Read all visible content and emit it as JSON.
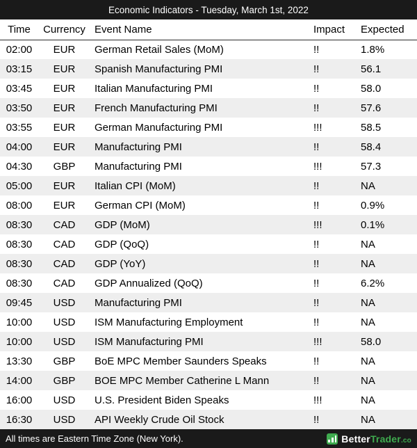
{
  "title": "Economic Indicators - Tuesday, March 1st, 2022",
  "table": {
    "headers": [
      "Time",
      "Currency",
      "Event Name",
      "Impact",
      "Expected"
    ],
    "rows": [
      {
        "time": "02:00",
        "currency": "EUR",
        "event": "German Retail Sales (MoM)",
        "impact": "!!",
        "expected": "1.8%"
      },
      {
        "time": "03:15",
        "currency": "EUR",
        "event": "Spanish Manufacturing PMI",
        "impact": "!!",
        "expected": "56.1"
      },
      {
        "time": "03:45",
        "currency": "EUR",
        "event": "Italian Manufacturing PMI",
        "impact": "!!",
        "expected": "58.0"
      },
      {
        "time": "03:50",
        "currency": "EUR",
        "event": "French Manufacturing PMI",
        "impact": "!!",
        "expected": "57.6"
      },
      {
        "time": "03:55",
        "currency": "EUR",
        "event": "German Manufacturing PMI",
        "impact": "!!!",
        "expected": "58.5"
      },
      {
        "time": "04:00",
        "currency": "EUR",
        "event": "Manufacturing PMI",
        "impact": "!!",
        "expected": "58.4"
      },
      {
        "time": "04:30",
        "currency": "GBP",
        "event": "Manufacturing PMI",
        "impact": "!!!",
        "expected": "57.3"
      },
      {
        "time": "05:00",
        "currency": "EUR",
        "event": "Italian CPI (MoM)",
        "impact": "!!",
        "expected": "NA"
      },
      {
        "time": "08:00",
        "currency": "EUR",
        "event": "German CPI (MoM)",
        "impact": "!!",
        "expected": "0.9%"
      },
      {
        "time": "08:30",
        "currency": "CAD",
        "event": "GDP (MoM)",
        "impact": "!!!",
        "expected": "0.1%"
      },
      {
        "time": "08:30",
        "currency": "CAD",
        "event": "GDP (QoQ)",
        "impact": "!!",
        "expected": "NA"
      },
      {
        "time": "08:30",
        "currency": "CAD",
        "event": "GDP (YoY)",
        "impact": "!!",
        "expected": "NA"
      },
      {
        "time": "08:30",
        "currency": "CAD",
        "event": "GDP Annualized (QoQ)",
        "impact": "!!",
        "expected": "6.2%"
      },
      {
        "time": "09:45",
        "currency": "USD",
        "event": "Manufacturing PMI",
        "impact": "!!",
        "expected": "NA"
      },
      {
        "time": "10:00",
        "currency": "USD",
        "event": "ISM Manufacturing Employment",
        "impact": "!!",
        "expected": "NA"
      },
      {
        "time": "10:00",
        "currency": "USD",
        "event": "ISM Manufacturing PMI",
        "impact": "!!!",
        "expected": "58.0"
      },
      {
        "time": "13:30",
        "currency": "GBP",
        "event": "BoE MPC Member Saunders Speaks",
        "impact": "!!",
        "expected": "NA"
      },
      {
        "time": "14:00",
        "currency": "GBP",
        "event": "BOE MPC Member Catherine L Mann",
        "impact": "!!",
        "expected": "NA"
      },
      {
        "time": "16:00",
        "currency": "USD",
        "event": "U.S. President Biden Speaks",
        "impact": "!!!",
        "expected": "NA"
      },
      {
        "time": "16:30",
        "currency": "USD",
        "event": "API Weekly Crude Oil Stock",
        "impact": "!!",
        "expected": "NA"
      }
    ]
  },
  "footer": {
    "note": "All times are Eastern Time Zone (New York).",
    "brand": {
      "part1": "Better",
      "part2": "Trader",
      "suffix": ".co",
      "icon": "bar-chart-icon",
      "accent_green": "#3fab4f"
    }
  }
}
